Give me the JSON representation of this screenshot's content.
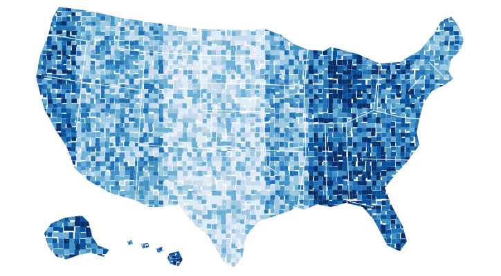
{
  "map": {
    "type": "choropleth",
    "subject": "united-states-counties",
    "palette": [
      "#deebf7",
      "#c6dbef",
      "#9ecae1",
      "#6baed6",
      "#4292c6",
      "#2171b5",
      "#08519c",
      "#08306b"
    ],
    "background": "#ffffff",
    "border_color": "#ffffff",
    "regions": [
      {
        "name": "contiguous-us"
      },
      {
        "name": "alaska"
      },
      {
        "name": "hawaii"
      }
    ]
  }
}
